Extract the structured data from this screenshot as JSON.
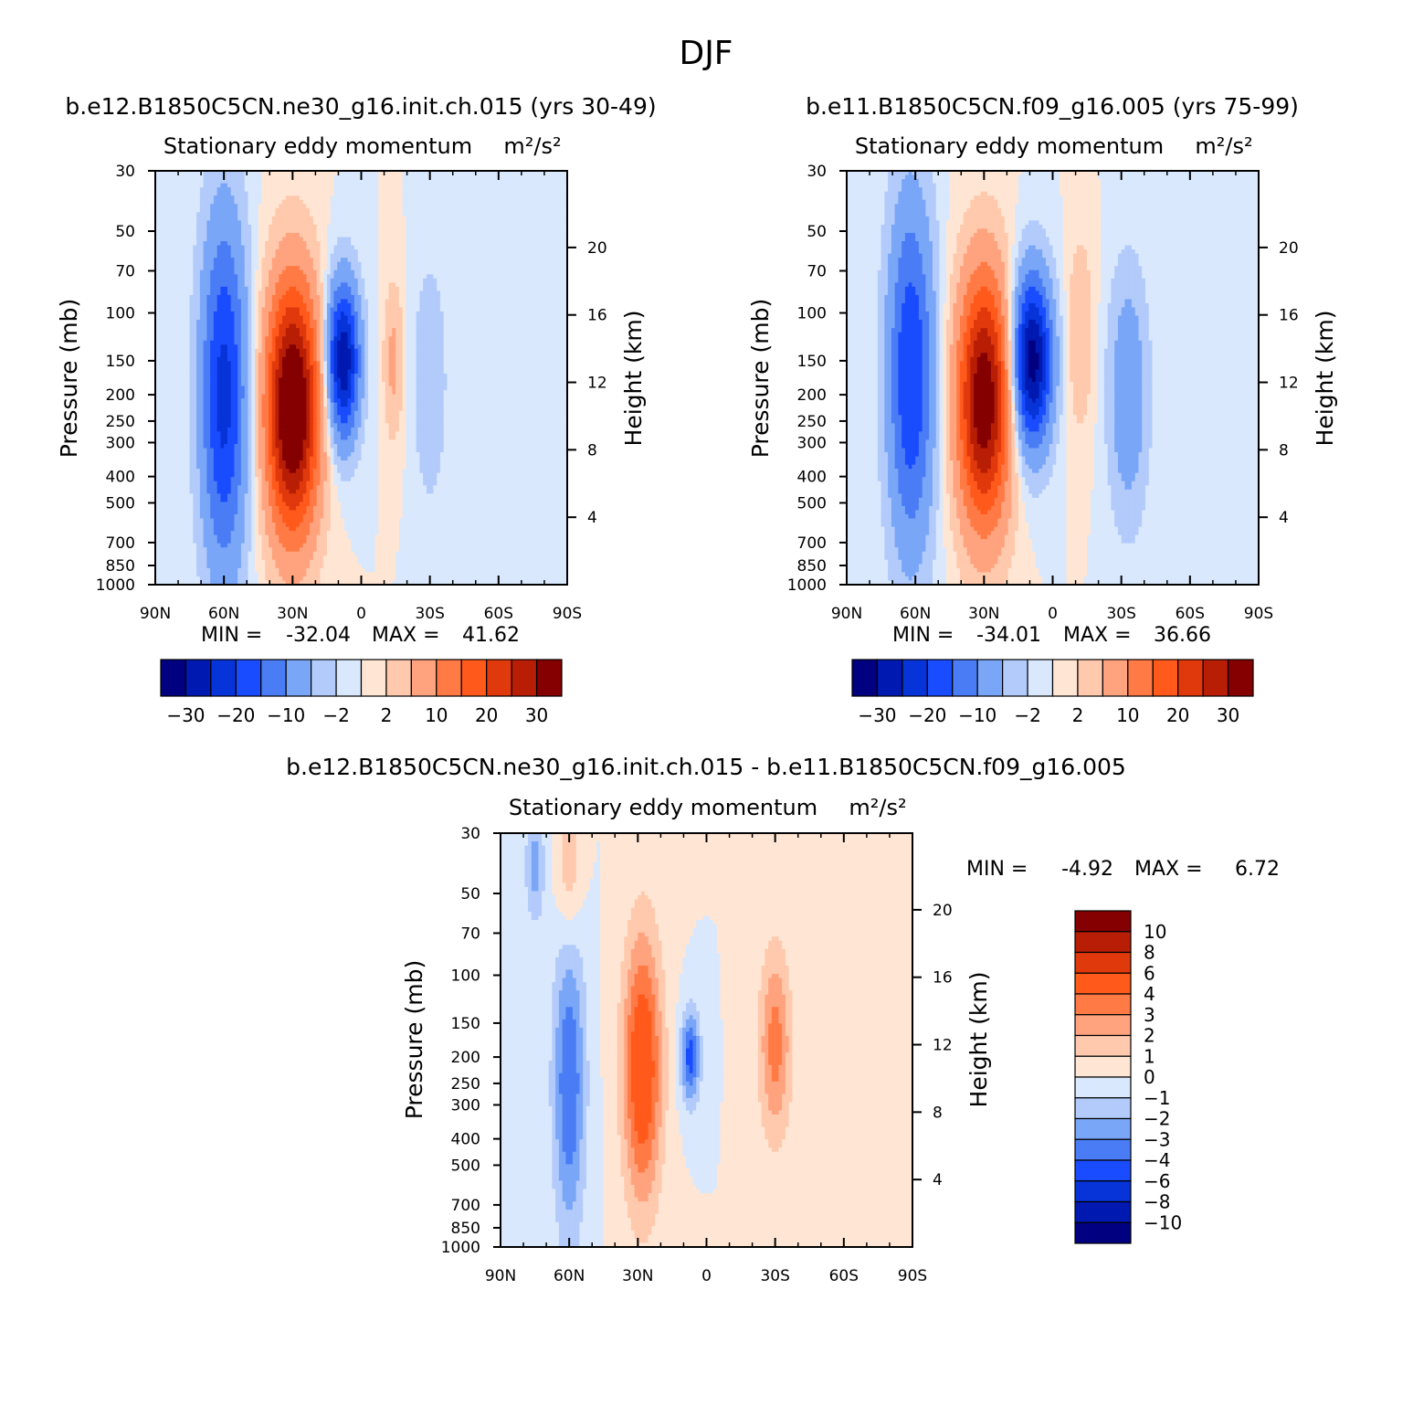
{
  "figure": {
    "title": "DJF",
    "palette": [
      "#000080",
      "#0019b0",
      "#0634d8",
      "#1a4cff",
      "#4a7cf5",
      "#7aa6f8",
      "#b2cbfb",
      "#d9e8fc",
      "#ffe6d4",
      "#ffc9ad",
      "#ffa37f",
      "#ff7a45",
      "#ff5a1c",
      "#e0390c",
      "#b81e05",
      "#850000"
    ]
  },
  "panels": [
    {
      "id": "p1",
      "case_title": "b.e12.B1850C5CN.ne30_g16.init.ch.015 (yrs 30-49)",
      "variable_label": "Stationary eddy momentum",
      "units_label": "m²/s²",
      "ylabel": "Pressure (mb)",
      "ylabel_right": "Height (km)",
      "min_label": "MIN =",
      "min_value": "-32.04",
      "max_label": "MAX =",
      "max_value": "41.62"
    },
    {
      "id": "p2",
      "case_title": "b.e11.B1850C5CN.f09_g16.005 (yrs 75-99)",
      "variable_label": "Stationary eddy momentum",
      "units_label": "m²/s²",
      "ylabel": "Pressure (mb)",
      "ylabel_right": "Height (km)",
      "min_label": "MIN =",
      "min_value": "-34.01",
      "max_label": "MAX =",
      "max_value": "36.66"
    },
    {
      "id": "p3",
      "case_title": "b.e12.B1850C5CN.ne30_g16.init.ch.015 - b.e11.B1850C5CN.f09_g16.005",
      "variable_label": "Stationary eddy momentum",
      "units_label": "m²/s²",
      "ylabel": "Pressure (mb)",
      "ylabel_right": "Height (km)",
      "min_label": "MIN =",
      "min_value": "-4.92",
      "max_label": "MAX =",
      "max_value": "6.72"
    }
  ],
  "chart_data": [
    {
      "type": "heatmap",
      "title": "b.e12.B1850C5CN.ne30_g16.init.ch.015 (yrs 30-49)",
      "subtitle": "Stationary eddy momentum  m²/s²",
      "xlabel": "",
      "ylabel": "Pressure (mb)",
      "ylabel_right": "Height (km)",
      "x_ticks": [
        "90N",
        "60N",
        "30N",
        "0",
        "30S",
        "60S",
        "90S"
      ],
      "y_ticks": [
        30,
        50,
        70,
        100,
        150,
        200,
        250,
        300,
        400,
        500,
        700,
        850,
        1000
      ],
      "y_scale": "log",
      "ylim": [
        1000,
        30
      ],
      "y_right_ticks": [
        4,
        8,
        12,
        16,
        20
      ],
      "contour_levels": [
        -30,
        -25,
        -20,
        -15,
        -10,
        -5,
        -2,
        0,
        2,
        5,
        10,
        15,
        20,
        25,
        30
      ],
      "colorbar_labels": [
        "-30",
        "-20",
        "-10",
        "-2",
        "2",
        "10",
        "20",
        "30"
      ],
      "min": -32.04,
      "max": 41.62,
      "features": [
        {
          "lat": 60,
          "p": 200,
          "value": -22,
          "sigma_lat": 7,
          "sigma_logp": 0.45
        },
        {
          "lat": 30,
          "p": 225,
          "value": 40,
          "sigma_lat": 8,
          "sigma_logp": 0.32
        },
        {
          "lat": 8,
          "p": 150,
          "value": -30,
          "sigma_lat": 5,
          "sigma_logp": 0.2
        },
        {
          "lat": -14,
          "p": 150,
          "value": 6,
          "sigma_lat": 3,
          "sigma_logp": 0.2
        },
        {
          "lat": -30,
          "p": 180,
          "value": -5,
          "sigma_lat": 5,
          "sigma_logp": 0.3
        }
      ]
    },
    {
      "type": "heatmap",
      "title": "b.e11.B1850C5CN.f09_g16.005 (yrs 75-99)",
      "subtitle": "Stationary eddy momentum  m²/s²",
      "xlabel": "",
      "ylabel": "Pressure (mb)",
      "ylabel_right": "Height (km)",
      "x_ticks": [
        "90N",
        "60N",
        "30N",
        "0",
        "30S",
        "60S",
        "90S"
      ],
      "y_ticks": [
        30,
        50,
        70,
        100,
        150,
        200,
        250,
        300,
        400,
        500,
        700,
        850,
        1000
      ],
      "y_scale": "log",
      "ylim": [
        1000,
        30
      ],
      "y_right_ticks": [
        4,
        8,
        12,
        16,
        20
      ],
      "contour_levels": [
        -30,
        -25,
        -20,
        -15,
        -10,
        -5,
        -2,
        0,
        2,
        5,
        10,
        15,
        20,
        25,
        30
      ],
      "colorbar_labels": [
        "-30",
        "-20",
        "-10",
        "-2",
        "2",
        "10",
        "20",
        "30"
      ],
      "min": -34.01,
      "max": 36.66,
      "features": [
        {
          "lat": 62,
          "p": 170,
          "value": -20,
          "sigma_lat": 7,
          "sigma_logp": 0.45
        },
        {
          "lat": 30,
          "p": 210,
          "value": 35,
          "sigma_lat": 8,
          "sigma_logp": 0.32
        },
        {
          "lat": 9,
          "p": 150,
          "value": -33,
          "sigma_lat": 6,
          "sigma_logp": 0.22
        },
        {
          "lat": -12,
          "p": 120,
          "value": 5,
          "sigma_lat": 4,
          "sigma_logp": 0.25
        },
        {
          "lat": -33,
          "p": 200,
          "value": -9,
          "sigma_lat": 6,
          "sigma_logp": 0.32
        }
      ]
    },
    {
      "type": "heatmap",
      "title": "b.e12.B1850C5CN.ne30_g16.init.ch.015 - b.e11.B1850C5CN.f09_g16.005",
      "subtitle": "Stationary eddy momentum  m²/s²",
      "xlabel": "",
      "ylabel": "Pressure (mb)",
      "ylabel_right": "Height (km)",
      "x_ticks": [
        "90N",
        "60N",
        "30N",
        "0",
        "30S",
        "60S",
        "90S"
      ],
      "y_ticks": [
        30,
        50,
        70,
        100,
        150,
        200,
        250,
        300,
        400,
        500,
        700,
        850,
        1000
      ],
      "y_scale": "log",
      "ylim": [
        1000,
        30
      ],
      "y_right_ticks": [
        4,
        8,
        12,
        16,
        20
      ],
      "contour_levels": [
        -10,
        -8,
        -6,
        -4,
        -3,
        -2,
        -1,
        0,
        1,
        2,
        3,
        4,
        6,
        8,
        10
      ],
      "colorbar_labels": [
        "10",
        "8",
        "6",
        "4",
        "3",
        "2",
        "1",
        "0",
        "-1",
        "-2",
        "-3",
        "-4",
        "-6",
        "-8",
        "-10"
      ],
      "min": -4.92,
      "max": 6.72,
      "features": [
        {
          "lat": 60,
          "p": 250,
          "value": -4,
          "sigma_lat": 5,
          "sigma_logp": 0.4
        },
        {
          "lat": 28,
          "p": 220,
          "value": 5.5,
          "sigma_lat": 6,
          "sigma_logp": 0.35
        },
        {
          "lat": 7,
          "p": 200,
          "value": -4.5,
          "sigma_lat": 3,
          "sigma_logp": 0.12
        },
        {
          "lat": -30,
          "p": 180,
          "value": 3.5,
          "sigma_lat": 5,
          "sigma_logp": 0.25
        },
        {
          "lat": 75,
          "p": 40,
          "value": -2.5,
          "sigma_lat": 3,
          "sigma_logp": 0.15
        },
        {
          "lat": 60,
          "p": 40,
          "value": 2,
          "sigma_lat": 4,
          "sigma_logp": 0.2
        }
      ]
    }
  ]
}
